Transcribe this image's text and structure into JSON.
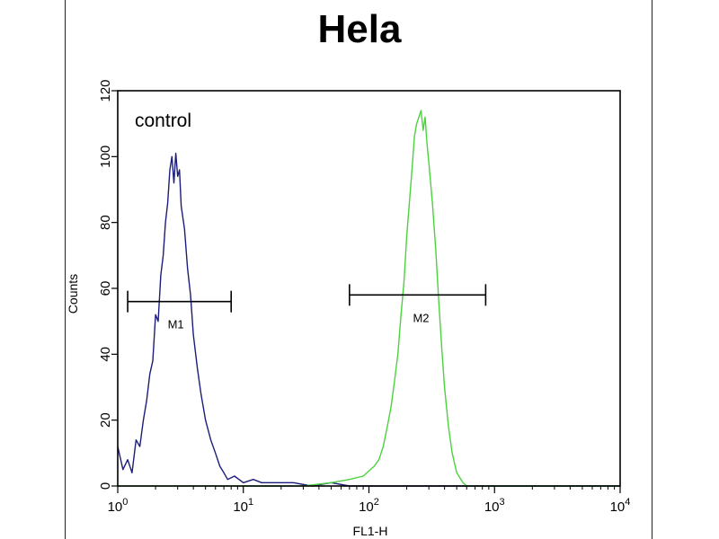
{
  "chart_data": {
    "type": "line",
    "title": "Hela",
    "xlabel": "FL1-H",
    "ylabel": "Counts",
    "x_scale": "log",
    "xlim": [
      1,
      10000
    ],
    "ylim": [
      0,
      120
    ],
    "x_ticks": [
      {
        "base": "10",
        "exp": "0"
      },
      {
        "base": "10",
        "exp": "1"
      },
      {
        "base": "10",
        "exp": "2"
      },
      {
        "base": "10",
        "exp": "3"
      },
      {
        "base": "10",
        "exp": "4"
      }
    ],
    "y_ticks": [
      0,
      20,
      40,
      60,
      80,
      100,
      120
    ],
    "annotations": {
      "control_label": "control",
      "m1_label": "M1",
      "m2_label": "M2"
    },
    "gates": [
      {
        "name": "M1",
        "x_start": 1.2,
        "x_end": 8,
        "y": 56
      },
      {
        "name": "M2",
        "x_start": 70,
        "x_end": 850,
        "y": 58
      }
    ],
    "series": [
      {
        "color": "#1c1c7a",
        "points": [
          [
            1.0,
            12
          ],
          [
            1.1,
            5
          ],
          [
            1.2,
            8
          ],
          [
            1.3,
            4
          ],
          [
            1.4,
            14
          ],
          [
            1.5,
            12
          ],
          [
            1.6,
            20
          ],
          [
            1.7,
            26
          ],
          [
            1.8,
            34
          ],
          [
            1.9,
            38
          ],
          [
            2.0,
            52
          ],
          [
            2.1,
            50
          ],
          [
            2.2,
            64
          ],
          [
            2.3,
            70
          ],
          [
            2.4,
            80
          ],
          [
            2.5,
            86
          ],
          [
            2.6,
            96
          ],
          [
            2.7,
            100
          ],
          [
            2.8,
            92
          ],
          [
            2.9,
            101
          ],
          [
            3.0,
            94
          ],
          [
            3.1,
            96
          ],
          [
            3.2,
            85
          ],
          [
            3.4,
            78
          ],
          [
            3.6,
            66
          ],
          [
            3.8,
            58
          ],
          [
            4.0,
            46
          ],
          [
            4.3,
            36
          ],
          [
            4.6,
            28
          ],
          [
            5.0,
            20
          ],
          [
            5.5,
            14
          ],
          [
            6.0,
            10
          ],
          [
            6.5,
            6
          ],
          [
            7.0,
            4
          ],
          [
            7.5,
            2
          ],
          [
            8.5,
            3
          ],
          [
            10,
            1
          ],
          [
            12,
            2
          ],
          [
            14,
            1
          ],
          [
            18,
            1
          ],
          [
            25,
            1
          ],
          [
            35,
            0
          ],
          [
            50,
            1
          ],
          [
            70,
            0
          ],
          [
            100,
            0
          ],
          [
            10000,
            0
          ]
        ]
      },
      {
        "color": "#4cd23e",
        "points": [
          [
            1,
            0
          ],
          [
            30,
            0
          ],
          [
            50,
            1
          ],
          [
            70,
            2
          ],
          [
            90,
            3
          ],
          [
            110,
            6
          ],
          [
            120,
            8
          ],
          [
            130,
            12
          ],
          [
            140,
            18
          ],
          [
            150,
            24
          ],
          [
            160,
            32
          ],
          [
            170,
            40
          ],
          [
            180,
            52
          ],
          [
            190,
            62
          ],
          [
            200,
            76
          ],
          [
            210,
            86
          ],
          [
            220,
            96
          ],
          [
            230,
            106
          ],
          [
            240,
            110
          ],
          [
            250,
            112
          ],
          [
            260,
            114
          ],
          [
            270,
            108
          ],
          [
            280,
            112
          ],
          [
            290,
            104
          ],
          [
            300,
            98
          ],
          [
            320,
            86
          ],
          [
            340,
            72
          ],
          [
            360,
            56
          ],
          [
            380,
            42
          ],
          [
            400,
            30
          ],
          [
            430,
            18
          ],
          [
            460,
            10
          ],
          [
            500,
            4
          ],
          [
            560,
            1
          ],
          [
            600,
            0
          ],
          [
            10000,
            0
          ]
        ]
      }
    ]
  }
}
